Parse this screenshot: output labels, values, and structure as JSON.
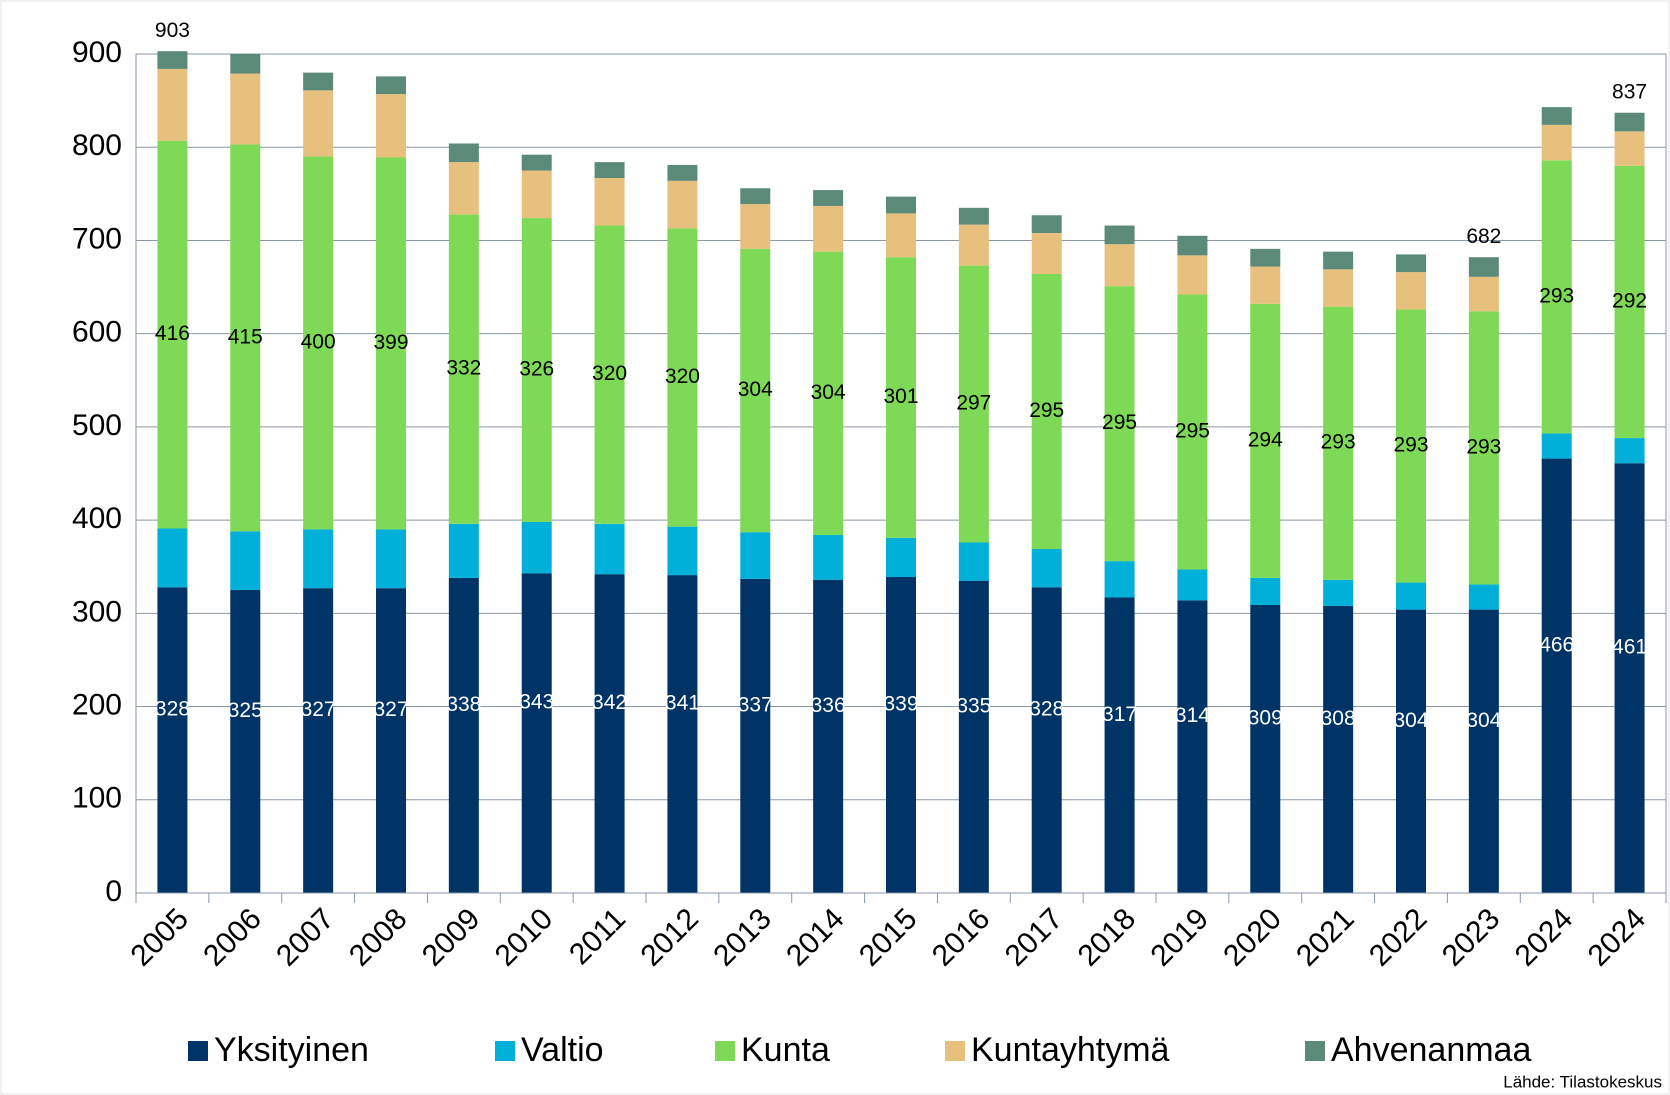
{
  "chart_data": {
    "type": "stacked_bar",
    "categories": [
      "2005",
      "2006",
      "2007",
      "2008",
      "2009",
      "2010",
      "2011",
      "2012",
      "2013",
      "2014",
      "2015",
      "2016",
      "2017",
      "2018",
      "2019",
      "2020",
      "2021",
      "2022",
      "2023",
      "2024",
      "2024"
    ],
    "series": [
      {
        "name": "Yksityinen",
        "color": "#003366",
        "data_labels": true,
        "label_color": "#ffffff",
        "values": [
          328,
          325,
          327,
          327,
          338,
          343,
          342,
          341,
          337,
          336,
          339,
          335,
          328,
          317,
          314,
          309,
          308,
          304,
          304,
          466,
          461
        ]
      },
      {
        "name": "Valtio",
        "color": "#00b0d8",
        "data_labels": false,
        "values": [
          63,
          63,
          63,
          63,
          58,
          55,
          54,
          52,
          50,
          48,
          42,
          41,
          41,
          39,
          33,
          29,
          28,
          29,
          27,
          27,
          27
        ]
      },
      {
        "name": "Kunta",
        "color": "#7ed957",
        "data_labels": true,
        "label_color": "#000000",
        "values": [
          416,
          415,
          400,
          399,
          332,
          326,
          320,
          320,
          304,
          304,
          301,
          297,
          295,
          295,
          295,
          294,
          293,
          293,
          293,
          293,
          292
        ]
      },
      {
        "name": "Kuntayhtymä",
        "color": "#e8c07d",
        "data_labels": false,
        "values": [
          77,
          76,
          71,
          68,
          56,
          51,
          51,
          51,
          48,
          49,
          47,
          44,
          44,
          45,
          42,
          40,
          40,
          40,
          37,
          38,
          37
        ]
      },
      {
        "name": "Ahvenanmaa",
        "color": "#5b8a78",
        "data_labels": false,
        "values": [
          19,
          21,
          19,
          19,
          20,
          17,
          17,
          17,
          17,
          17,
          18,
          18,
          19,
          20,
          21,
          19,
          19,
          19,
          21,
          19,
          20
        ]
      }
    ],
    "total_labels": [
      903,
      null,
      null,
      null,
      null,
      null,
      null,
      null,
      null,
      null,
      null,
      null,
      null,
      null,
      null,
      null,
      null,
      null,
      682,
      null,
      837
    ],
    "ylim": [
      0,
      900
    ],
    "yticks": [
      0,
      100,
      200,
      300,
      400,
      500,
      600,
      700,
      800,
      900
    ],
    "grid": true,
    "source": "Lähde: Tilastokeskus"
  }
}
